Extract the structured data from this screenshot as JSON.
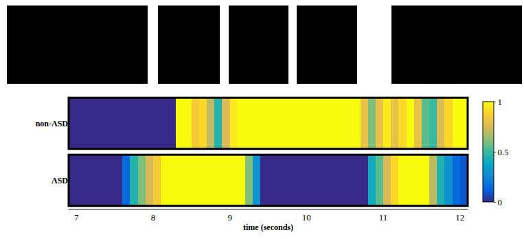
{
  "chart_data": {
    "type": "heatmap",
    "x_label": "time (seconds)",
    "rows": [
      "non-ASD",
      "ASD"
    ],
    "x": [
      6.95,
      7.05,
      7.15,
      7.25,
      7.35,
      7.45,
      7.55,
      7.65,
      7.75,
      7.85,
      7.95,
      8.05,
      8.15,
      8.25,
      8.35,
      8.45,
      8.55,
      8.65,
      8.75,
      8.85,
      8.95,
      9.05,
      9.15,
      9.25,
      9.35,
      9.45,
      9.55,
      9.65,
      9.75,
      9.85,
      9.95,
      10.05,
      10.15,
      10.25,
      10.35,
      10.45,
      10.55,
      10.65,
      10.75,
      10.85,
      10.95,
      11.05,
      11.15,
      11.25,
      11.35,
      11.45,
      11.55,
      11.65,
      11.75,
      11.85,
      11.95,
      12.05
    ],
    "z": [
      [
        0,
        0,
        0,
        0,
        0,
        0,
        0,
        0,
        0,
        0,
        0,
        0,
        0,
        0,
        1,
        1,
        0.85,
        0.9,
        0.7,
        0.45,
        0.75,
        0.95,
        1,
        1,
        1,
        1,
        1,
        1,
        1,
        1,
        1,
        1,
        1,
        1,
        1,
        1,
        1,
        1,
        0.8,
        0.6,
        0.8,
        0.95,
        0.8,
        0.9,
        1,
        0.8,
        0.55,
        0.5,
        0.75,
        0.9,
        1,
        1
      ],
      [
        0,
        0,
        0,
        0,
        0,
        0,
        0,
        0.15,
        0.45,
        0.6,
        0.75,
        0.85,
        1,
        1,
        1,
        1,
        1,
        1,
        1,
        1,
        1,
        1,
        1,
        0.6,
        0.3,
        0,
        0,
        0,
        0,
        0,
        0,
        0,
        0,
        0,
        0,
        0,
        0,
        0,
        0,
        0.4,
        0.55,
        0.75,
        0.9,
        1,
        1,
        1,
        1,
        0.7,
        0.45,
        0.3,
        0.15,
        0.1
      ]
    ],
    "xlim": [
      6.9,
      12.1
    ],
    "xticks": [
      7,
      8,
      9,
      10,
      11,
      12
    ],
    "colorbar": {
      "range": [
        0,
        1
      ],
      "ticks": [
        0,
        0.5,
        1
      ]
    }
  }
}
